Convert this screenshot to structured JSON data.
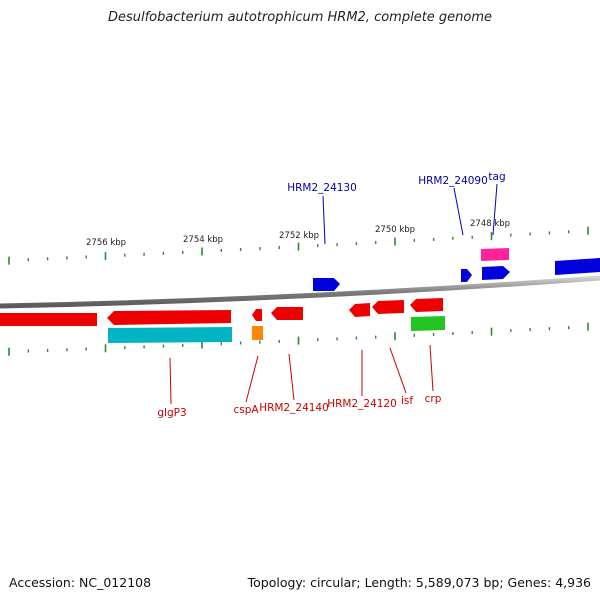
{
  "title": "Desulfobacterium autotrophicum HRM2, complete genome",
  "footer": {
    "accession": "Accession: NC_012108",
    "topology": "Topology: circular; Length: 5,589,073 bp; Genes: 4,936"
  },
  "colors": {
    "plus_strand_gene": "#0000dd",
    "minus_strand_gene": "#ee0000",
    "cyan_feature": "#00b4c4",
    "orange_feature": "#ff8800",
    "magenta_feature": "#ff2299",
    "green_feature": "#22c422",
    "tick": "#2d8a2d",
    "backbone": "#8a8a8a",
    "upper_label": "#0000aa",
    "lower_label": "#cc0000"
  },
  "kbp_labels": [
    "2756 kbp",
    "2754 kbp",
    "2752 kbp",
    "2750 kbp",
    "2748 kbp"
  ],
  "upper_labels": [
    "HRM2_24130",
    "HRM2_24090",
    "tag"
  ],
  "lower_labels": [
    "glgP3",
    "cspA",
    "HRM2_24140",
    "HRM2_24120",
    "isf",
    "crp"
  ]
}
